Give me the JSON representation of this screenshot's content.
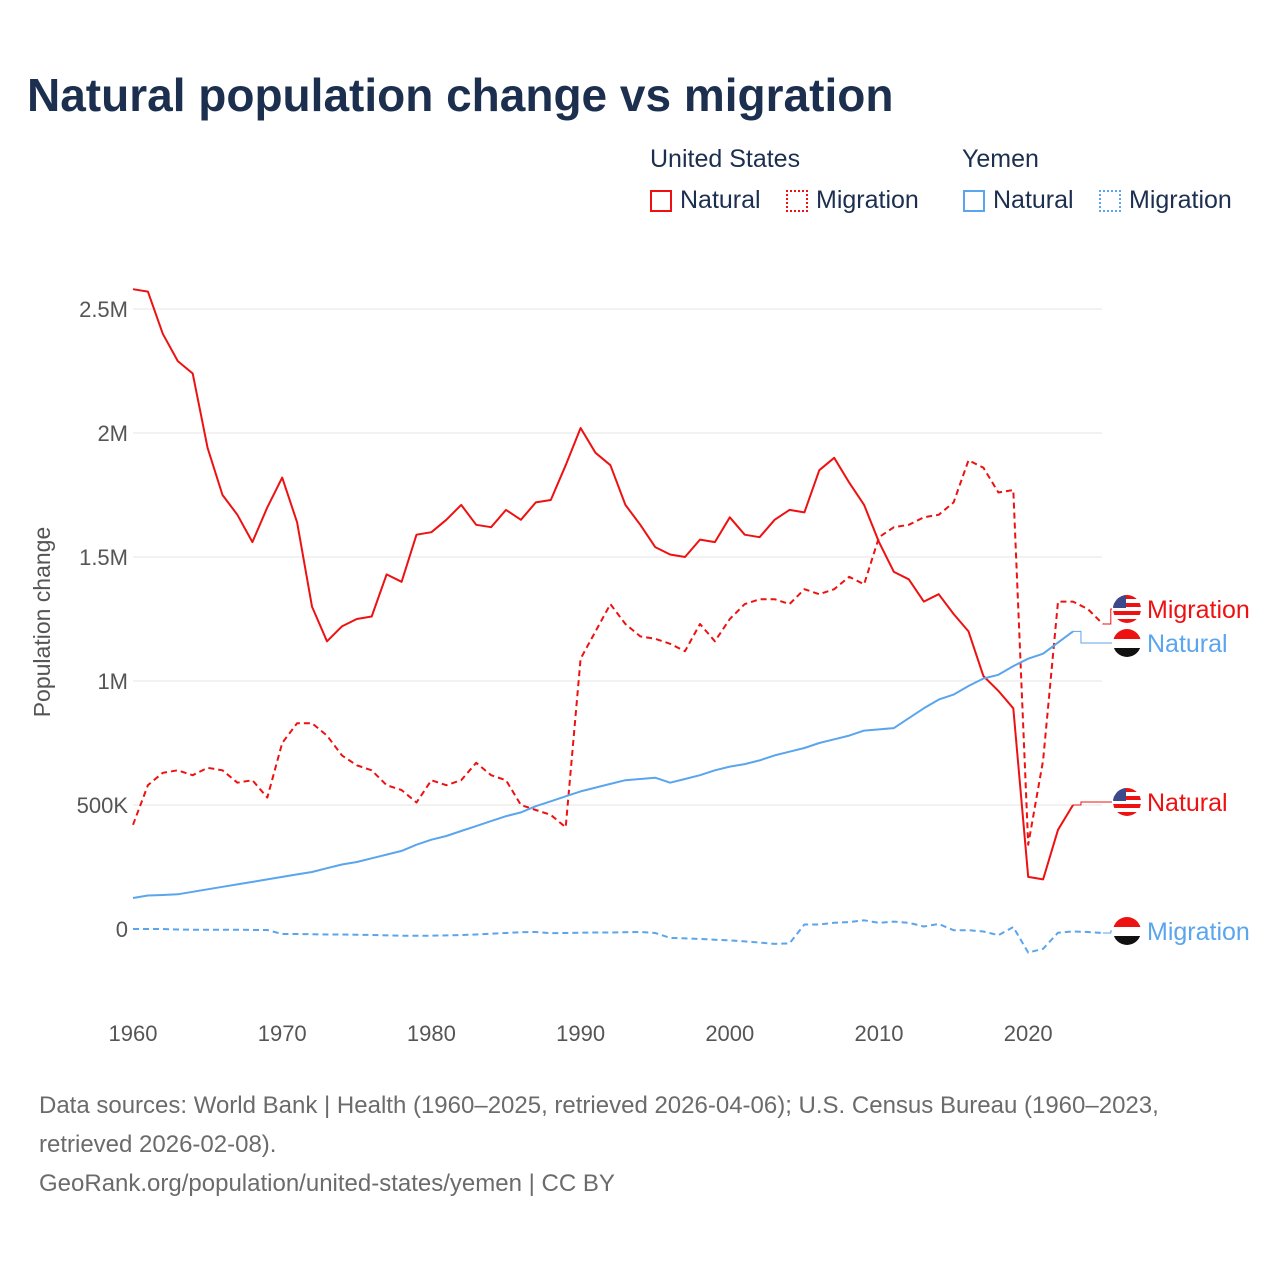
{
  "title": "Natural population change vs migration",
  "legend": {
    "groups": [
      {
        "name": "United States",
        "color": "#ee1111",
        "items": [
          "Natural",
          "Migration"
        ]
      },
      {
        "name": "Yemen",
        "color": "#5aa5ee",
        "items": [
          "Natural",
          "Migration"
        ]
      }
    ]
  },
  "footer": {
    "sources": "Data sources: World Bank | Health (1960–2025, retrieved 2026-04-06); U.S. Census Bureau (1960–2023,",
    "sources2": "retrieved 2026-02-08).",
    "credit": "GeoRank.org/population/united-states/yemen | CC BY"
  },
  "chart_data": {
    "type": "line",
    "title": "Natural population change vs migration",
    "ylabel": "Population change",
    "xlabel": "",
    "xlim": [
      1960,
      2025
    ],
    "ylim": [
      -0.2,
      2.7
    ],
    "x_ticks": [
      1960,
      1970,
      1980,
      1990,
      2000,
      2010,
      2020
    ],
    "y_ticks": [
      {
        "v": 0,
        "label": "0"
      },
      {
        "v": 0.5,
        "label": "500K"
      },
      {
        "v": 1,
        "label": "1M"
      },
      {
        "v": 1.5,
        "label": "1.5M"
      },
      {
        "v": 2,
        "label": "2M"
      },
      {
        "v": 2.5,
        "label": "2.5M"
      }
    ],
    "y_units": "millions",
    "grid": true,
    "series": [
      {
        "name": "Natural",
        "country": "United States",
        "color": "#ee1111",
        "dash": "solid",
        "end_label": "Natural",
        "start": 1960,
        "values": [
          2.58,
          2.57,
          2.4,
          2.29,
          2.24,
          1.94,
          1.75,
          1.67,
          1.56,
          1.7,
          1.82,
          1.64,
          1.3,
          1.16,
          1.22,
          1.25,
          1.26,
          1.43,
          1.4,
          1.59,
          1.6,
          1.65,
          1.71,
          1.63,
          1.62,
          1.69,
          1.65,
          1.72,
          1.73,
          1.87,
          2.02,
          1.92,
          1.87,
          1.71,
          1.63,
          1.54,
          1.51,
          1.5,
          1.57,
          1.56,
          1.66,
          1.59,
          1.58,
          1.65,
          1.69,
          1.68,
          1.85,
          1.9,
          1.8,
          1.71,
          1.56,
          1.44,
          1.41,
          1.32,
          1.35,
          1.27,
          1.2,
          1.02,
          0.96,
          0.89,
          0.21,
          0.2,
          0.4,
          0.5
        ]
      },
      {
        "name": "Migration",
        "country": "United States",
        "color": "#ee1111",
        "dash": "dashed",
        "end_label": "Migration",
        "start": 1960,
        "values": [
          0.42,
          0.58,
          0.63,
          0.64,
          0.62,
          0.65,
          0.64,
          0.59,
          0.6,
          0.53,
          0.75,
          0.83,
          0.83,
          0.78,
          0.7,
          0.66,
          0.64,
          0.58,
          0.56,
          0.51,
          0.6,
          0.58,
          0.6,
          0.67,
          0.62,
          0.6,
          0.5,
          0.48,
          0.46,
          0.41,
          1.09,
          1.2,
          1.31,
          1.23,
          1.18,
          1.17,
          1.15,
          1.12,
          1.23,
          1.16,
          1.25,
          1.31,
          1.33,
          1.33,
          1.31,
          1.37,
          1.35,
          1.37,
          1.42,
          1.39,
          1.58,
          1.62,
          1.63,
          1.66,
          1.67,
          1.72,
          1.89,
          1.86,
          1.76,
          1.77,
          0.34,
          0.68,
          1.32,
          1.32,
          1.29,
          1.23
        ]
      },
      {
        "name": "Natural",
        "country": "Yemen",
        "color": "#5aa5ee",
        "dash": "solid",
        "end_label": "Natural",
        "start": 1960,
        "values": [
          0.125,
          0.135,
          0.137,
          0.14,
          0.15,
          0.16,
          0.17,
          0.18,
          0.19,
          0.2,
          0.21,
          0.22,
          0.23,
          0.245,
          0.26,
          0.27,
          0.285,
          0.3,
          0.315,
          0.34,
          0.36,
          0.375,
          0.395,
          0.415,
          0.435,
          0.455,
          0.47,
          0.495,
          0.515,
          0.535,
          0.555,
          0.57,
          0.585,
          0.6,
          0.605,
          0.61,
          0.59,
          0.605,
          0.62,
          0.64,
          0.655,
          0.665,
          0.68,
          0.7,
          0.715,
          0.73,
          0.75,
          0.765,
          0.78,
          0.8,
          0.805,
          0.81,
          0.85,
          0.89,
          0.925,
          0.945,
          0.98,
          1.01,
          1.025,
          1.06,
          1.09,
          1.11,
          1.155,
          1.2
        ]
      },
      {
        "name": "Migration",
        "country": "Yemen",
        "color": "#5aa5ee",
        "dash": "dashed",
        "end_label": "Migration",
        "start": 1960,
        "values": [
          0,
          0,
          0,
          -0.002,
          -0.003,
          -0.003,
          -0.003,
          -0.003,
          -0.004,
          -0.004,
          -0.02,
          -0.02,
          -0.021,
          -0.022,
          -0.022,
          -0.023,
          -0.024,
          -0.026,
          -0.027,
          -0.027,
          -0.027,
          -0.026,
          -0.024,
          -0.022,
          -0.019,
          -0.016,
          -0.013,
          -0.012,
          -0.017,
          -0.016,
          -0.015,
          -0.014,
          -0.014,
          -0.013,
          -0.012,
          -0.016,
          -0.036,
          -0.038,
          -0.04,
          -0.043,
          -0.046,
          -0.05,
          -0.055,
          -0.06,
          -0.058,
          0.018,
          0.018,
          0.025,
          0.028,
          0.035,
          0.025,
          0.03,
          0.025,
          0.01,
          0.02,
          -0.005,
          -0.005,
          -0.01,
          -0.025,
          0.008,
          -0.095,
          -0.08,
          -0.015,
          -0.01,
          -0.012,
          -0.016
        ]
      }
    ]
  }
}
